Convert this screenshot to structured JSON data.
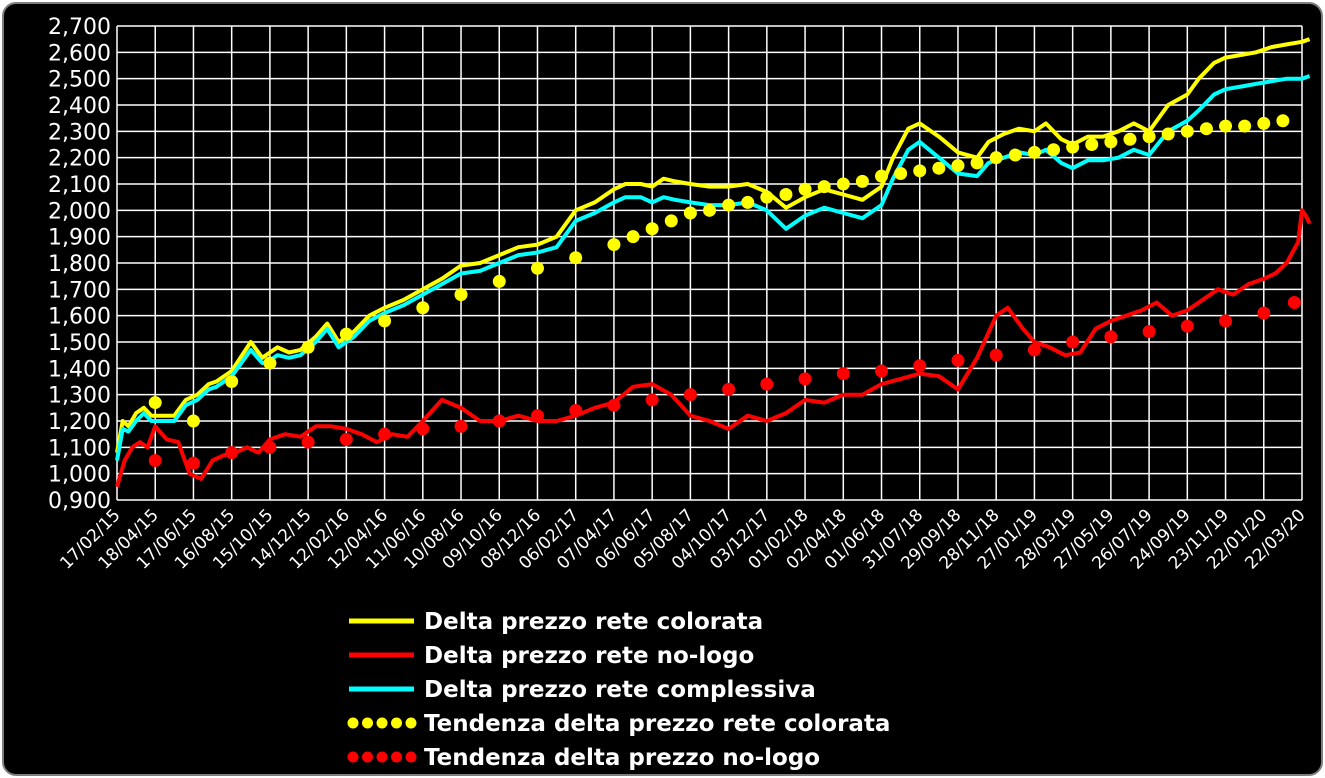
{
  "chart_data": {
    "type": "line",
    "title": "",
    "xlabel": "",
    "ylabel": "",
    "ylim": [
      0.9,
      2.7
    ],
    "grid": true,
    "legend_position": "bottom-center",
    "y_ticks": [
      "0,900",
      "1,000",
      "1,100",
      "1,200",
      "1,300",
      "1,400",
      "1,500",
      "1,600",
      "1,700",
      "1,800",
      "1,900",
      "2,000",
      "2,100",
      "2,200",
      "2,300",
      "2,400",
      "2,500",
      "2,600",
      "2,700"
    ],
    "x_ticks": [
      "17/02/15",
      "18/04/15",
      "17/06/15",
      "16/08/15",
      "15/10/15",
      "14/12/15",
      "12/02/16",
      "12/04/16",
      "11/06/16",
      "10/08/16",
      "09/10/16",
      "08/12/16",
      "06/02/17",
      "07/04/17",
      "06/06/17",
      "05/08/17",
      "04/10/17",
      "03/12/17",
      "01/02/18",
      "02/04/18",
      "01/06/18",
      "31/07/18",
      "29/09/18",
      "28/11/18",
      "27/01/19",
      "28/03/19",
      "27/05/19",
      "26/07/19",
      "24/09/19",
      "23/11/19",
      "22/01/20",
      "22/03/20"
    ],
    "series": [
      {
        "name": "Delta prezzo rete colorata",
        "style": "line",
        "color": "#ffff00",
        "x_index": [
          0,
          0.15,
          0.3,
          0.5,
          0.7,
          0.9,
          1.2,
          1.5,
          1.8,
          2.1,
          2.4,
          2.6,
          3.0,
          3.5,
          3.8,
          4.0,
          4.2,
          4.5,
          4.8,
          5.2,
          5.5,
          5.8,
          6.2,
          6.6,
          7.0,
          7.5,
          8.0,
          8.5,
          9.0,
          9.5,
          10.0,
          10.5,
          11.0,
          11.5,
          12.0,
          12.5,
          13.0,
          13.3,
          13.7,
          14.0,
          14.3,
          14.6,
          15.0,
          15.5,
          16.0,
          16.5,
          17.0,
          17.5,
          18.0,
          18.5,
          19.0,
          19.5,
          20.0,
          20.3,
          20.7,
          21.0,
          21.5,
          22.0,
          22.5,
          22.8,
          23.2,
          23.6,
          24.0,
          24.3,
          24.7,
          25.0,
          25.4,
          25.8,
          26.2,
          26.6,
          27.0,
          27.5,
          28.0,
          28.3,
          28.7,
          29.0,
          29.4,
          29.8,
          30.2,
          30.6,
          31.0,
          31.2
        ],
        "values": [
          1.08,
          1.2,
          1.18,
          1.23,
          1.25,
          1.22,
          1.22,
          1.22,
          1.28,
          1.3,
          1.34,
          1.35,
          1.39,
          1.5,
          1.44,
          1.46,
          1.48,
          1.46,
          1.47,
          1.52,
          1.57,
          1.5,
          1.54,
          1.6,
          1.63,
          1.66,
          1.7,
          1.74,
          1.79,
          1.8,
          1.83,
          1.86,
          1.87,
          1.9,
          2.0,
          2.03,
          2.08,
          2.1,
          2.1,
          2.09,
          2.12,
          2.11,
          2.1,
          2.09,
          2.09,
          2.1,
          2.07,
          2.01,
          2.05,
          2.08,
          2.06,
          2.04,
          2.09,
          2.2,
          2.31,
          2.33,
          2.28,
          2.22,
          2.2,
          2.26,
          2.29,
          2.31,
          2.3,
          2.33,
          2.27,
          2.25,
          2.28,
          2.28,
          2.3,
          2.33,
          2.3,
          2.4,
          2.44,
          2.5,
          2.56,
          2.58,
          2.59,
          2.6,
          2.62,
          2.63,
          2.64,
          2.65
        ]
      },
      {
        "name": "Delta prezzo rete no-logo",
        "style": "line",
        "color": "#ff0000",
        "x_index": [
          0,
          0.2,
          0.4,
          0.6,
          0.8,
          1.0,
          1.3,
          1.6,
          1.9,
          2.2,
          2.5,
          2.8,
          3.1,
          3.4,
          3.7,
          4.0,
          4.4,
          4.8,
          5.2,
          5.6,
          6.0,
          6.4,
          6.8,
          7.2,
          7.6,
          8.0,
          8.5,
          9.0,
          9.5,
          10.0,
          10.5,
          11.0,
          11.5,
          12.0,
          12.5,
          13.0,
          13.5,
          14.0,
          14.5,
          15.0,
          15.5,
          16.0,
          16.5,
          17.0,
          17.5,
          18.0,
          18.5,
          19.0,
          19.5,
          20.0,
          20.5,
          21.0,
          21.5,
          22.0,
          22.5,
          23.0,
          23.3,
          23.7,
          24.0,
          24.4,
          24.8,
          25.2,
          25.6,
          26.0,
          26.4,
          26.8,
          27.2,
          27.6,
          28.0,
          28.4,
          28.8,
          29.2,
          29.6,
          30.0,
          30.3,
          30.6,
          30.9,
          31.0,
          31.1,
          31.2
        ],
        "values": [
          0.95,
          1.05,
          1.1,
          1.12,
          1.1,
          1.18,
          1.13,
          1.12,
          1.0,
          0.98,
          1.05,
          1.07,
          1.08,
          1.1,
          1.08,
          1.13,
          1.15,
          1.14,
          1.18,
          1.18,
          1.17,
          1.15,
          1.12,
          1.15,
          1.14,
          1.2,
          1.28,
          1.25,
          1.2,
          1.2,
          1.22,
          1.2,
          1.2,
          1.22,
          1.25,
          1.27,
          1.33,
          1.34,
          1.3,
          1.22,
          1.2,
          1.17,
          1.22,
          1.2,
          1.23,
          1.28,
          1.27,
          1.3,
          1.3,
          1.34,
          1.36,
          1.38,
          1.37,
          1.32,
          1.44,
          1.6,
          1.63,
          1.55,
          1.5,
          1.48,
          1.45,
          1.46,
          1.55,
          1.58,
          1.6,
          1.62,
          1.65,
          1.6,
          1.62,
          1.66,
          1.7,
          1.68,
          1.72,
          1.74,
          1.76,
          1.8,
          1.88,
          2.0,
          1.98,
          1.95
        ]
      },
      {
        "name": "Delta prezzo rete complessiva",
        "style": "line",
        "color": "#00ffff",
        "x_index": [
          0,
          0.15,
          0.3,
          0.5,
          0.7,
          0.9,
          1.2,
          1.5,
          1.8,
          2.1,
          2.4,
          2.6,
          3.0,
          3.5,
          3.8,
          4.0,
          4.2,
          4.5,
          4.8,
          5.2,
          5.5,
          5.8,
          6.2,
          6.6,
          7.0,
          7.5,
          8.0,
          8.5,
          9.0,
          9.5,
          10.0,
          10.5,
          11.0,
          11.5,
          12.0,
          12.5,
          13.0,
          13.3,
          13.7,
          14.0,
          14.3,
          14.6,
          15.0,
          15.5,
          16.0,
          16.5,
          17.0,
          17.5,
          18.0,
          18.5,
          19.0,
          19.5,
          20.0,
          20.3,
          20.7,
          21.0,
          21.5,
          22.0,
          22.5,
          22.8,
          23.2,
          23.6,
          24.0,
          24.3,
          24.7,
          25.0,
          25.4,
          25.8,
          26.2,
          26.6,
          27.0,
          27.5,
          28.0,
          28.3,
          28.7,
          29.0,
          29.4,
          29.8,
          30.2,
          30.6,
          31.0,
          31.2
        ],
        "values": [
          1.05,
          1.17,
          1.16,
          1.2,
          1.23,
          1.2,
          1.2,
          1.2,
          1.26,
          1.28,
          1.32,
          1.33,
          1.37,
          1.47,
          1.42,
          1.43,
          1.45,
          1.44,
          1.45,
          1.5,
          1.55,
          1.48,
          1.52,
          1.58,
          1.61,
          1.64,
          1.68,
          1.72,
          1.76,
          1.77,
          1.8,
          1.83,
          1.84,
          1.86,
          1.96,
          1.99,
          2.03,
          2.05,
          2.05,
          2.03,
          2.05,
          2.04,
          2.03,
          2.02,
          2.02,
          2.03,
          2.0,
          1.93,
          1.98,
          2.01,
          1.99,
          1.97,
          2.02,
          2.12,
          2.23,
          2.26,
          2.2,
          2.14,
          2.13,
          2.18,
          2.2,
          2.22,
          2.21,
          2.23,
          2.18,
          2.16,
          2.19,
          2.19,
          2.2,
          2.23,
          2.21,
          2.3,
          2.34,
          2.38,
          2.44,
          2.46,
          2.47,
          2.48,
          2.49,
          2.5,
          2.5,
          2.51
        ]
      },
      {
        "name": "Tendenza delta prezzo rete colorata",
        "style": "dots",
        "color": "#ffff00",
        "x_index": [
          1.0,
          2.0,
          3.0,
          4.0,
          5.0,
          6.0,
          7.0,
          8.0,
          9.0,
          10.0,
          11.0,
          12.0,
          13.0,
          13.5,
          14.0,
          14.5,
          15.0,
          15.5,
          16.0,
          16.5,
          17.0,
          17.5,
          18.0,
          18.5,
          19.0,
          19.5,
          20.0,
          20.5,
          21.0,
          21.5,
          22.0,
          22.5,
          23.0,
          23.5,
          24.0,
          24.5,
          25.0,
          25.5,
          26.0,
          26.5,
          27.0,
          27.5,
          28.0,
          28.5,
          29.0,
          29.5,
          30.0,
          30.5
        ],
        "values": [
          1.27,
          1.2,
          1.35,
          1.42,
          1.48,
          1.53,
          1.58,
          1.63,
          1.68,
          1.73,
          1.78,
          1.82,
          1.87,
          1.9,
          1.93,
          1.96,
          1.99,
          2.0,
          2.02,
          2.03,
          2.05,
          2.06,
          2.08,
          2.09,
          2.1,
          2.11,
          2.13,
          2.14,
          2.15,
          2.16,
          2.17,
          2.18,
          2.2,
          2.21,
          2.22,
          2.23,
          2.24,
          2.25,
          2.26,
          2.27,
          2.28,
          2.29,
          2.3,
          2.31,
          2.32,
          2.32,
          2.33,
          2.34
        ]
      },
      {
        "name": "Tendenza delta prezzo no-logo",
        "style": "dots",
        "color": "#ff0000",
        "x_index": [
          1.0,
          2.0,
          3.0,
          4.0,
          5.0,
          6.0,
          7.0,
          8.0,
          9.0,
          10.0,
          11.0,
          12.0,
          13.0,
          14.0,
          15.0,
          16.0,
          17.0,
          18.0,
          19.0,
          20.0,
          21.0,
          22.0,
          23.0,
          24.0,
          25.0,
          26.0,
          27.0,
          28.0,
          29.0,
          30.0,
          30.8
        ],
        "values": [
          1.05,
          1.04,
          1.08,
          1.1,
          1.12,
          1.13,
          1.15,
          1.17,
          1.18,
          1.2,
          1.22,
          1.24,
          1.26,
          1.28,
          1.3,
          1.32,
          1.34,
          1.36,
          1.38,
          1.39,
          1.41,
          1.43,
          1.45,
          1.47,
          1.5,
          1.52,
          1.54,
          1.56,
          1.58,
          1.61,
          1.65
        ]
      }
    ]
  }
}
